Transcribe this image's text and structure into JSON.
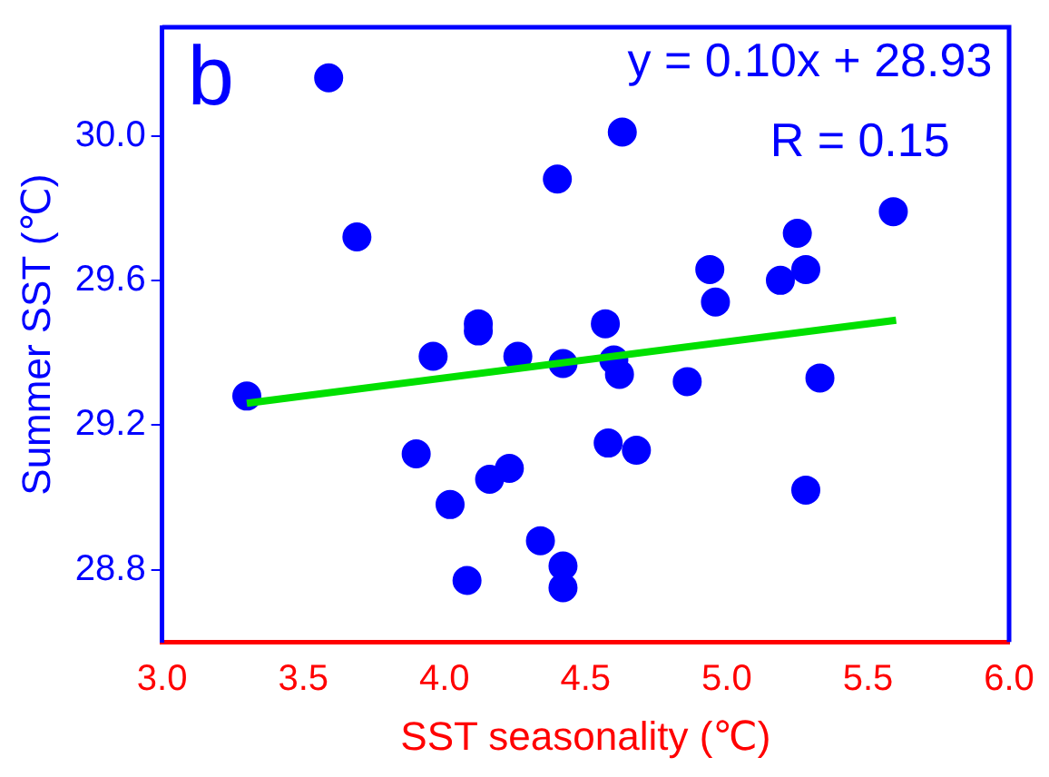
{
  "chart_data": {
    "type": "scatter",
    "xlabel": "SST seasonality (℃)",
    "ylabel": "Summer SST (℃)",
    "annotations": [
      "b",
      "y = 0.10x + 28.93",
      "R = 0.15"
    ],
    "xlim": [
      3,
      6
    ],
    "xticks": [
      {
        "value": 3,
        "label": "3.0"
      },
      {
        "value": 3.5,
        "label": "3.5"
      },
      {
        "value": 4,
        "label": "4.0"
      },
      {
        "value": 4.5,
        "label": "4.5"
      },
      {
        "value": 5,
        "label": "5.0"
      },
      {
        "value": 5.5,
        "label": "5.5"
      },
      {
        "value": 6,
        "label": "6.0"
      }
    ],
    "ylim": [
      28.6,
      30.3
    ],
    "yticks": [
      28.8,
      29.2,
      29.6,
      {
        "value": 30,
        "label": "30.0"
      }
    ],
    "grid": false,
    "legend": false,
    "marker": "circle",
    "series": [
      {
        "color": "#0000ff",
        "x": [
          3.59,
          3.69,
          3.3,
          3.96,
          4.12,
          4.12,
          4.26,
          3.9,
          4.16,
          4.23,
          4.02,
          4.08,
          4.63,
          4.4,
          5.59,
          5.25,
          4.94,
          5.28,
          5.19,
          4.96,
          4.57,
          4.42,
          4.6,
          4.62,
          4.86,
          5.33,
          4.58,
          4.68,
          5.28,
          4.34,
          4.42,
          4.42
        ],
        "values": [
          30.16,
          29.72,
          29.28,
          29.39,
          29.48,
          29.46,
          29.39,
          29.12,
          29.05,
          29.08,
          28.98,
          28.77,
          30.01,
          29.88,
          29.79,
          29.73,
          29.63,
          29.63,
          29.6,
          29.54,
          29.48,
          29.37,
          29.38,
          29.34,
          29.32,
          29.33,
          29.15,
          29.13,
          29.02,
          28.88,
          28.81,
          28.75
        ]
      },
      {
        "type": "line",
        "color": "#00e000",
        "x": [
          3.3,
          5.6
        ],
        "values": [
          29.26,
          29.49
        ],
        "marker": "none",
        "line_style": "solid"
      }
    ]
  }
}
